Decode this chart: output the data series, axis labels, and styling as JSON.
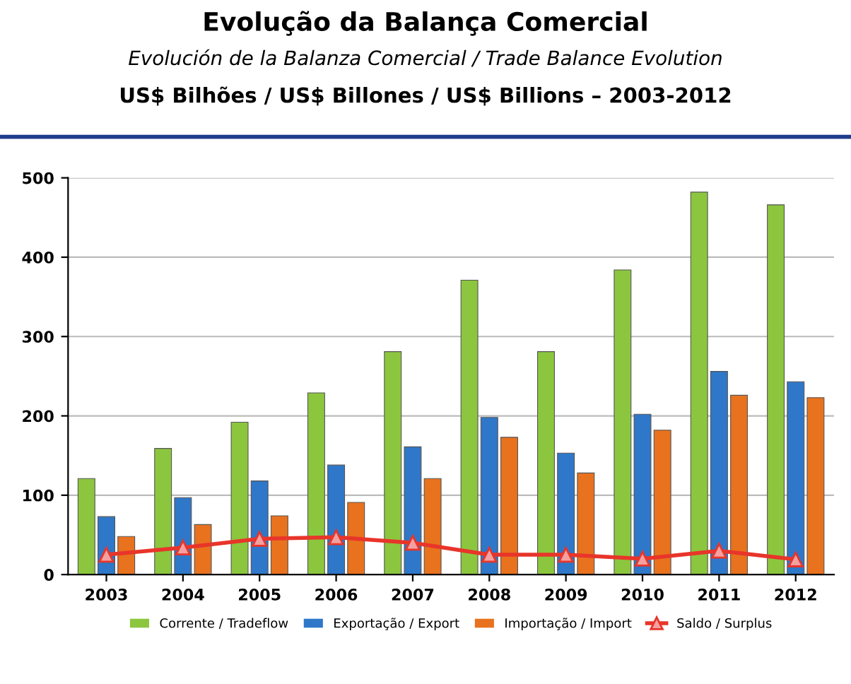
{
  "chart_data": {
    "type": "bar",
    "title": "Evolução da Balança Comercial",
    "subtitle": "Evolución de la Balanza Comercial / Trade Balance Evolution",
    "annotations": [
      "US$ Bilhões / US$ Billones / US$ Billions – 2003-2012"
    ],
    "categories": [
      "2003",
      "2004",
      "2005",
      "2006",
      "2007",
      "2008",
      "2009",
      "2010",
      "2011",
      "2012"
    ],
    "series": [
      {
        "name": "Corrente / Tradeflow",
        "color": "#8cc63e",
        "values": [
          121,
          159,
          192,
          229,
          281,
          371,
          281,
          384,
          482,
          466
        ]
      },
      {
        "name": "Exportação / Export",
        "color": "#2f77c8",
        "values": [
          73,
          97,
          118,
          138,
          161,
          198,
          153,
          202,
          256,
          243
        ]
      },
      {
        "name": "Importação / Import",
        "color": "#e8721e",
        "values": [
          48,
          63,
          74,
          91,
          121,
          173,
          128,
          182,
          226,
          223
        ]
      },
      {
        "name": "Saldo / Surplus",
        "type": "line",
        "color": "#e8352a",
        "marker": "triangle",
        "values": [
          25,
          34,
          45,
          47,
          40,
          25,
          25,
          20,
          30,
          19
        ]
      }
    ],
    "ylim": [
      0,
      500
    ],
    "yticks": [
      0,
      100,
      200,
      300,
      400,
      500
    ],
    "grid": "y",
    "legend": "bottom"
  }
}
